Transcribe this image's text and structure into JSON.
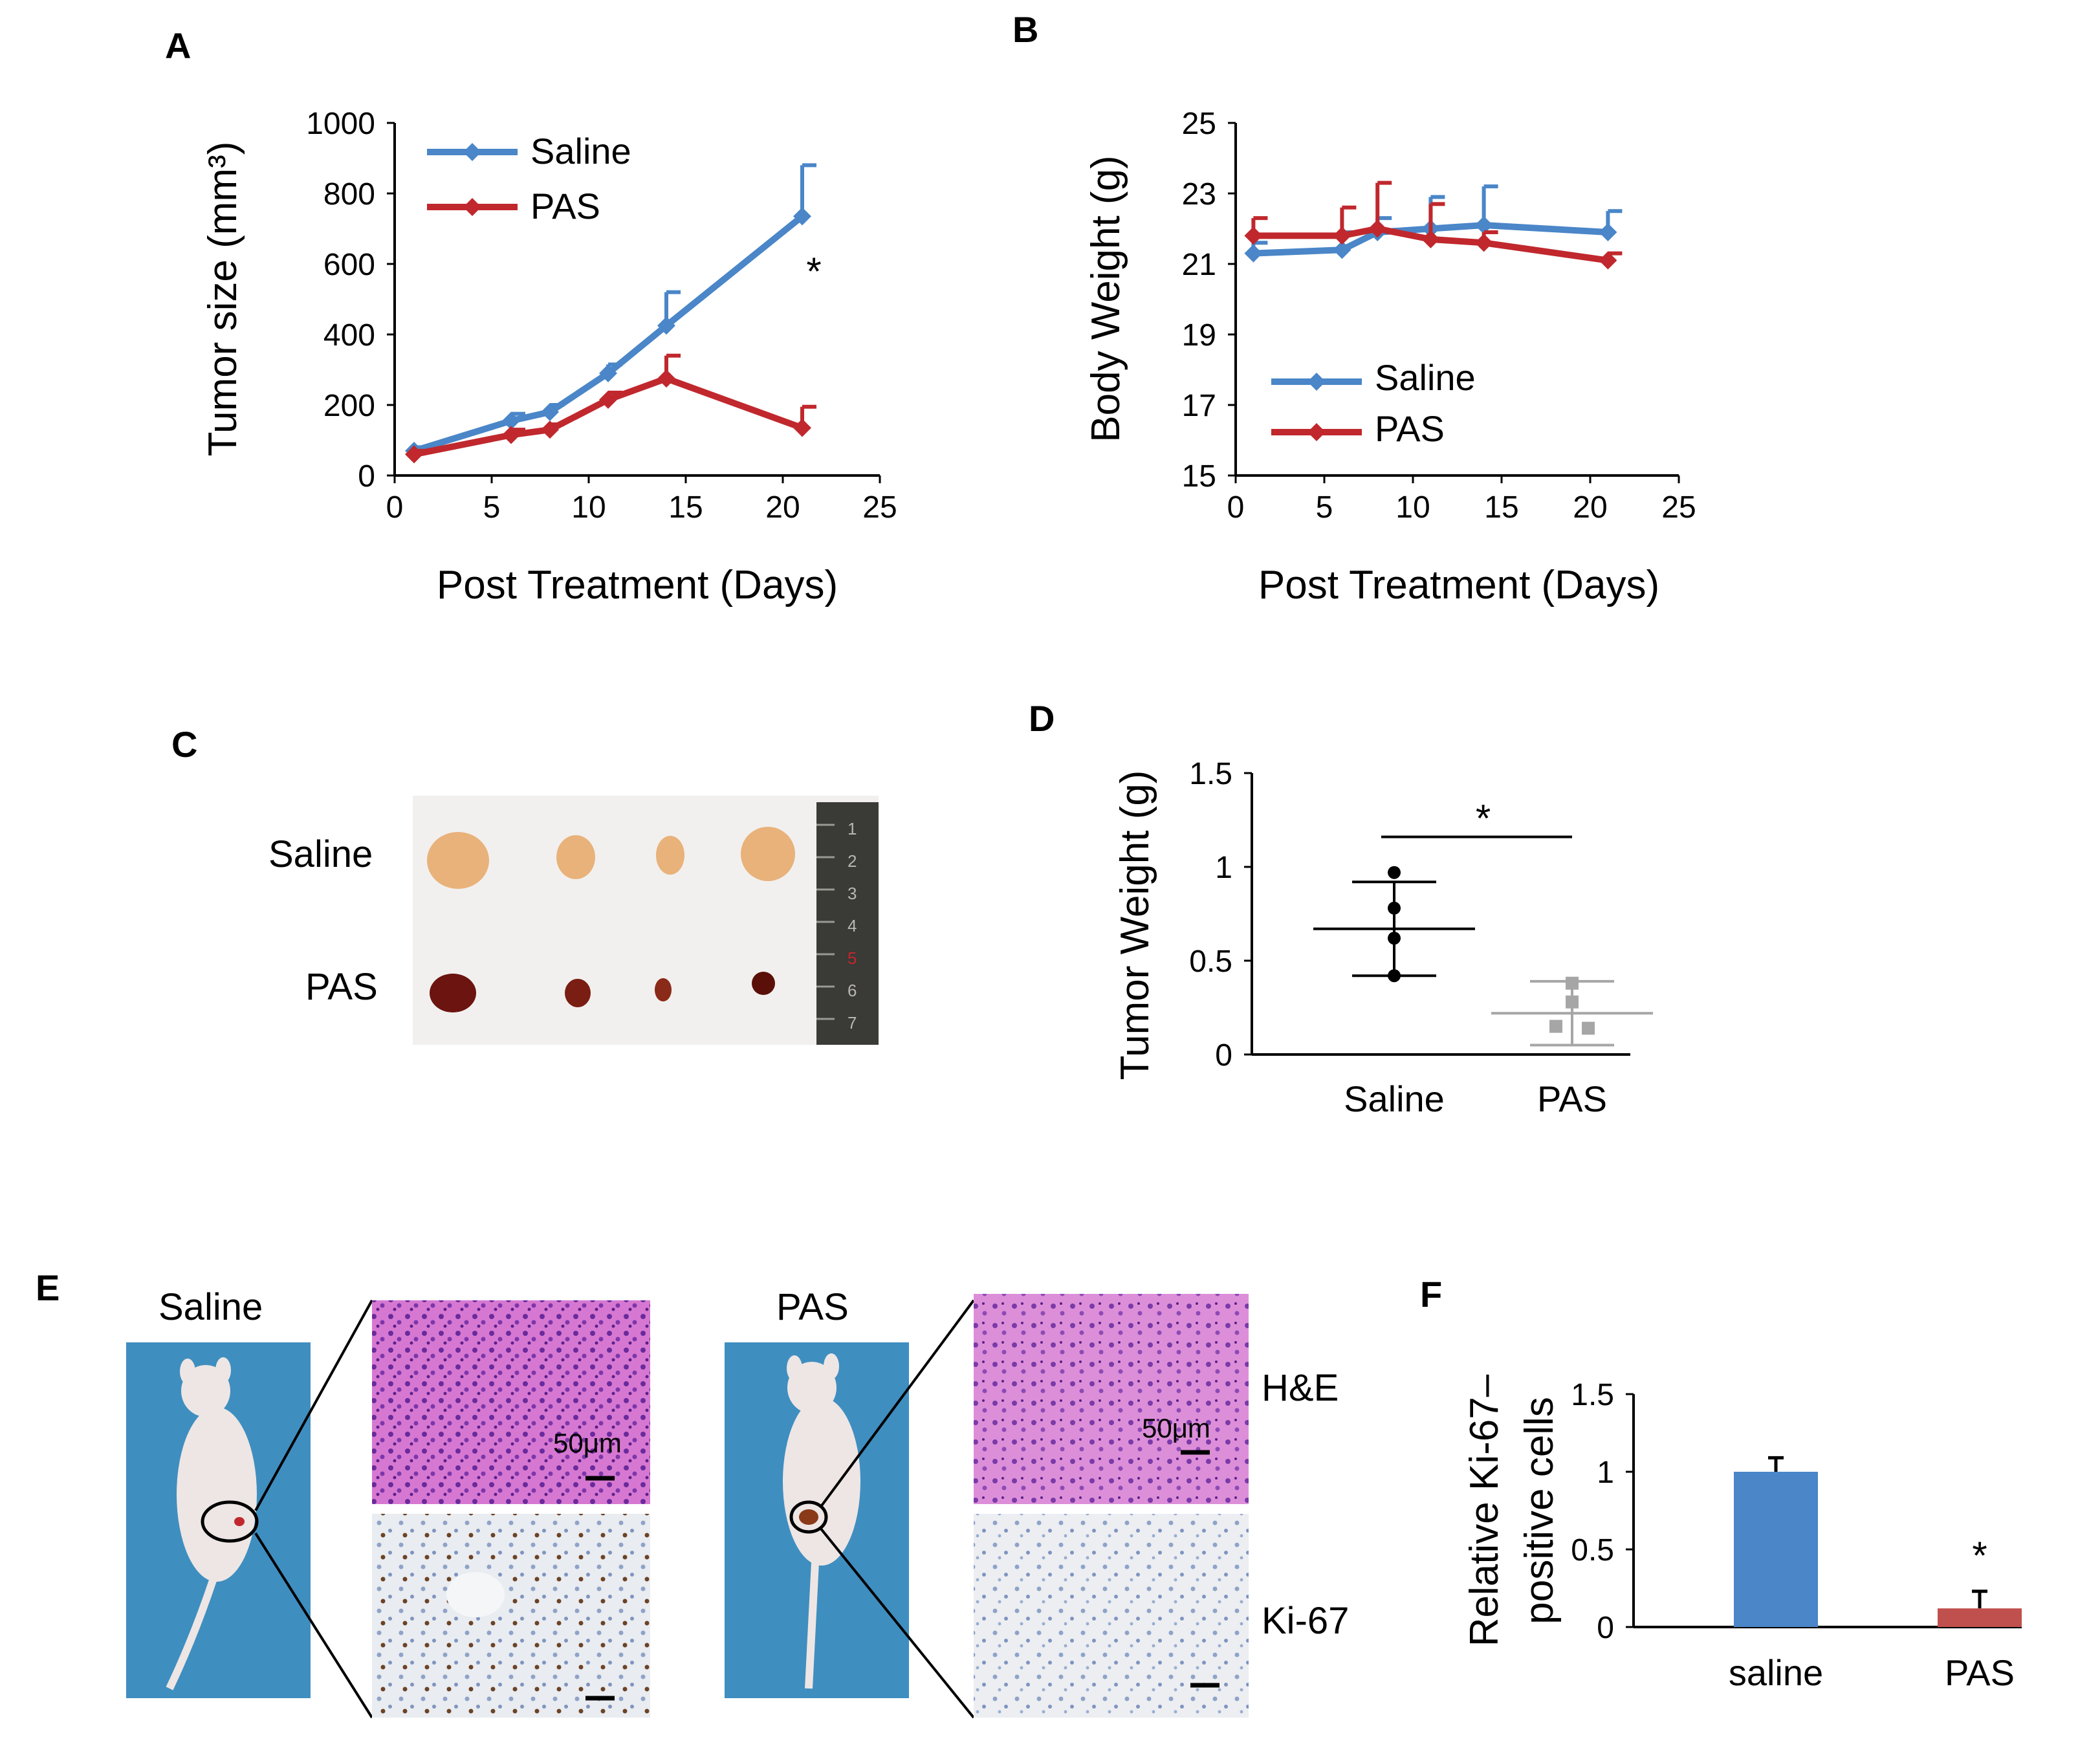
{
  "colors": {
    "saline": "#4a86c8",
    "pas": "#c0282d",
    "pas_light": "#c0504d",
    "pas_dot": "#a6a6a6",
    "axis": "#000000"
  },
  "panels": {
    "a": {
      "letter": "A"
    },
    "b": {
      "letter": "B"
    },
    "c": {
      "letter": "C",
      "row_labels": [
        "Saline",
        "PAS"
      ],
      "ruler_digits": [
        "1",
        "2",
        "3",
        "4",
        "5",
        "6",
        "7"
      ]
    },
    "d": {
      "letter": "D"
    },
    "e": {
      "letter": "E",
      "group_labels": [
        "Saline",
        "PAS"
      ],
      "stain_labels": [
        "H&E",
        "Ki-67"
      ],
      "scale_label": "50μm"
    },
    "f": {
      "letter": "F"
    }
  },
  "chart_data": [
    {
      "id": "A",
      "type": "line",
      "ylabel": "Tumor size (mm³)",
      "xlabel": "Post Treatment (Days)",
      "xlim": [
        0,
        25
      ],
      "xticks": [
        0,
        5,
        10,
        15,
        20,
        25
      ],
      "ylim": [
        0,
        1000
      ],
      "yticks": [
        0,
        200,
        400,
        600,
        800,
        1000
      ],
      "legend_position": "top-left",
      "series": [
        {
          "name": "Saline",
          "x": [
            1,
            6,
            8,
            11,
            14,
            21
          ],
          "values": [
            70,
            155,
            180,
            290,
            425,
            735
          ],
          "errors": [
            10,
            20,
            20,
            25,
            95,
            145
          ]
        },
        {
          "name": "PAS",
          "x": [
            1,
            6,
            8,
            11,
            14,
            21
          ],
          "values": [
            60,
            115,
            130,
            215,
            275,
            135
          ],
          "errors": [
            10,
            15,
            15,
            20,
            65,
            60
          ]
        }
      ],
      "annotations": [
        {
          "text": "*",
          "x": 21.5,
          "y": 600
        }
      ]
    },
    {
      "id": "B",
      "type": "line",
      "ylabel": "Body Weight (g)",
      "xlabel": "Post Treatment (Days)",
      "xlim": [
        0,
        25
      ],
      "xticks": [
        0,
        5,
        10,
        15,
        20,
        25
      ],
      "ylim": [
        15,
        25
      ],
      "yticks": [
        15,
        17,
        19,
        21,
        23,
        25
      ],
      "legend_position": "bottom-left",
      "series": [
        {
          "name": "Saline",
          "x": [
            1,
            6,
            8,
            11,
            14,
            21
          ],
          "values": [
            21.3,
            21.4,
            21.9,
            22.0,
            22.1,
            21.9
          ],
          "errors": [
            0.3,
            0.5,
            0.4,
            0.9,
            1.1,
            0.6
          ]
        },
        {
          "name": "PAS",
          "x": [
            1,
            6,
            8,
            11,
            14,
            21
          ],
          "values": [
            21.8,
            21.8,
            22.0,
            21.7,
            21.6,
            21.1
          ],
          "errors": [
            0.5,
            0.8,
            1.3,
            1.0,
            0.3,
            0.2
          ]
        }
      ]
    },
    {
      "id": "D",
      "type": "scatter",
      "ylabel": "Tumor Weight (g)",
      "categories": [
        "Saline",
        "PAS"
      ],
      "ylim": [
        0,
        1.5
      ],
      "yticks": [
        "0",
        "0.5",
        "1",
        "1.5"
      ],
      "series": [
        {
          "name": "Saline",
          "points": [
            0.97,
            0.78,
            0.62,
            0.42
          ],
          "mean": 0.67,
          "sd": 0.25
        },
        {
          "name": "PAS",
          "points": [
            0.38,
            0.28,
            0.15,
            0.14
          ],
          "mean": 0.22,
          "sd": 0.17
        }
      ],
      "annotations": [
        {
          "text": "*",
          "between": [
            "Saline",
            "PAS"
          ],
          "y": 1.16
        }
      ]
    },
    {
      "id": "F",
      "type": "bar",
      "ylabel_lines": [
        "Relative Ki-67–",
        "positive cells"
      ],
      "categories": [
        "saline",
        "PAS"
      ],
      "values": [
        1.0,
        0.12
      ],
      "errors": [
        0.09,
        0.11
      ],
      "ylim": [
        0,
        1.5
      ],
      "yticks": [
        "0",
        "0.5",
        "1",
        "1.5"
      ],
      "annotations": [
        {
          "text": "*",
          "category": "PAS"
        }
      ]
    }
  ]
}
